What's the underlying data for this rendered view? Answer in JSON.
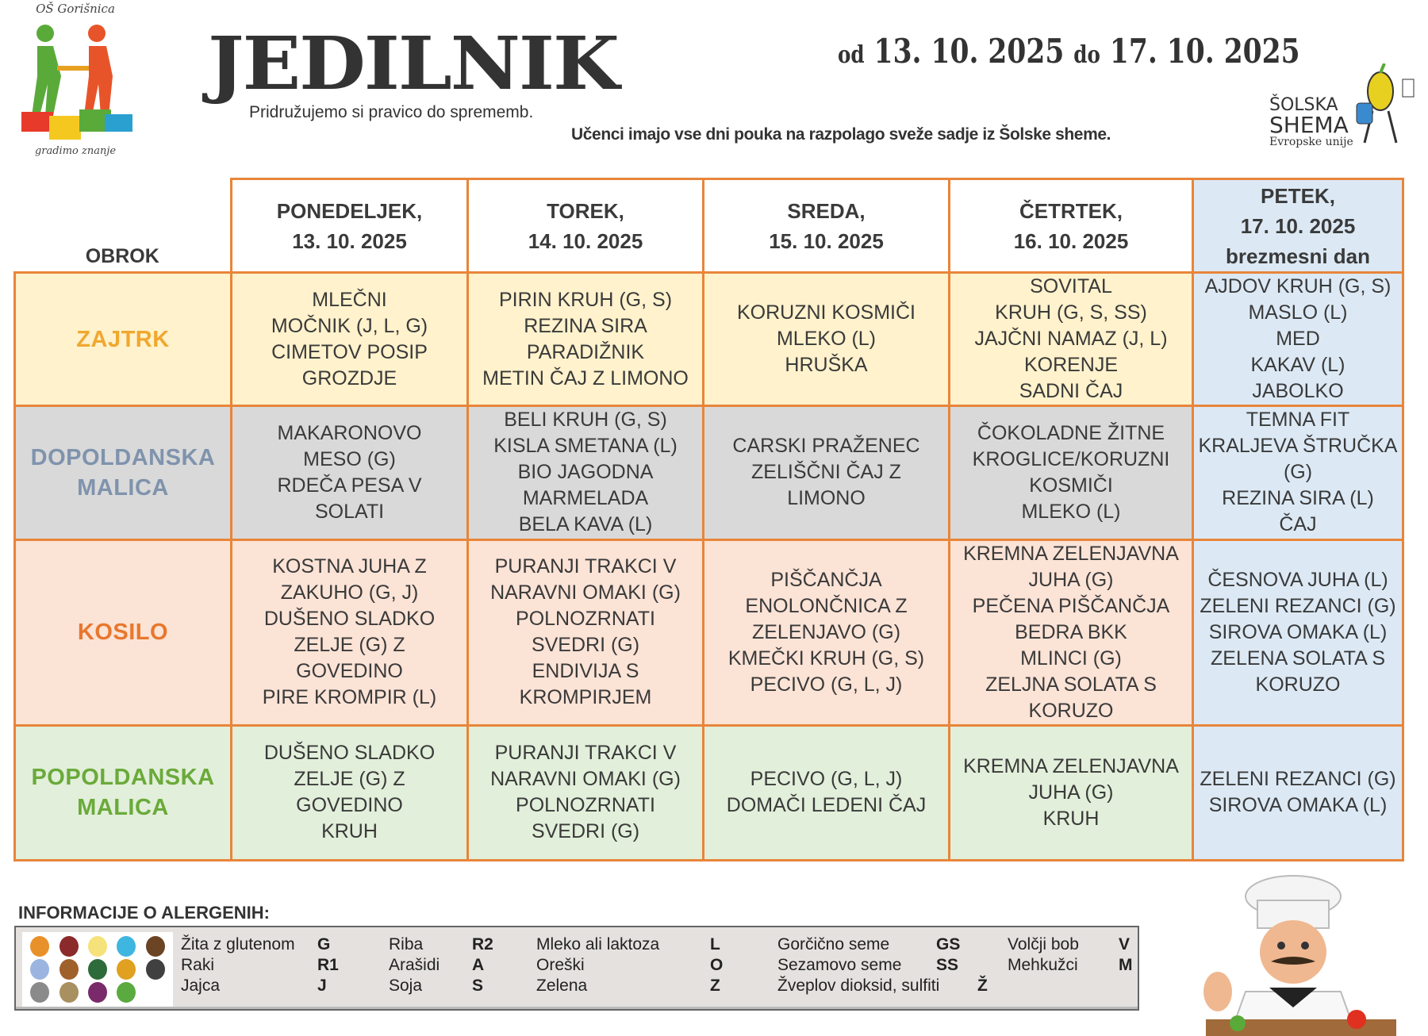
{
  "header": {
    "school": "OŠ Gorišnica",
    "motto": "gradimo znanje",
    "title": "JEDILNIK",
    "subtitle": "Pridružujemo si pravico do sprememb.",
    "date_from_label": "od",
    "date_from": "13. 10. 2025",
    "date_to_label": "do",
    "date_to": "17. 10. 2025",
    "fruit_note": "Učenci imajo vse dni pouka na razpolago sveže sadje iz Šolske sheme.",
    "shema_logo": {
      "line1": "ŠOLSKA",
      "line2": "SHEMA",
      "line3": "Evropske unije"
    }
  },
  "table": {
    "corner": "OBROK",
    "days": [
      {
        "name": "PONEDELJEK,",
        "date": "13. 10. 2025"
      },
      {
        "name": "TOREK,",
        "date": "14. 10. 2025"
      },
      {
        "name": "SREDA,",
        "date": "15. 10. 2025"
      },
      {
        "name": "ČETRTEK,",
        "date": "16. 10. 2025"
      },
      {
        "name": "PETEK,",
        "date": "17. 10. 2025",
        "note": "brezmesni dan"
      }
    ],
    "rows": [
      {
        "meal": [
          "ZAJTRK"
        ],
        "color": "#f0a830",
        "cells": [
          [
            "MLEČNI",
            "MOČNIK (J, L, G)",
            "CIMETOV POSIP",
            "GROZDJE"
          ],
          [
            "PIRIN KRUH (G, S)",
            "REZINA SIRA",
            "PARADIŽNIK",
            "METIN ČAJ Z LIMONO"
          ],
          [
            "KORUZNI KOSMIČI",
            "MLEKO (L)",
            "HRUŠKA"
          ],
          [
            "SOVITAL",
            "KRUH (G, S, SS)",
            "JAJČNI NAMAZ (J, L)",
            "KORENJE",
            "SADNI ČAJ"
          ],
          [
            "AJDOV KRUH (G, S)",
            "MASLO (L)",
            "MED",
            "KAKAV (L)",
            "JABOLKO"
          ]
        ]
      },
      {
        "meal": [
          "DOPOLDANSKA",
          "MALICA"
        ],
        "color": "#7f93ad",
        "cells": [
          [
            "MAKARONOVO",
            "MESO (G)",
            "RDEČA PESA V",
            "SOLATI"
          ],
          [
            "BELI KRUH (G, S)",
            "KISLA SMETANA (L)",
            "BIO JAGODNA",
            "MARMELADA",
            "BELA KAVA (L)"
          ],
          [
            "CARSKI PRAŽENEC",
            "ZELIŠČNI ČAJ Z",
            "LIMONO"
          ],
          [
            "ČOKOLADNE ŽITNE",
            "KROGLICE/KORUZNI",
            "KOSMIČI",
            "MLEKO (L)"
          ],
          [
            "TEMNA FIT",
            "KRALJEVA ŠTRUČKA",
            "(G)",
            "REZINA SIRA (L)",
            "ČAJ"
          ]
        ]
      },
      {
        "meal": [
          "KOSILO"
        ],
        "color": "#e8772e",
        "cells": [
          [
            "KOSTNA JUHA Z",
            "ZAKUHO (G, J)",
            "DUŠENO SLADKO",
            "ZELJE (G) Z",
            "GOVEDINO",
            "PIRE KROMPIR (L)"
          ],
          [
            "PURANJI TRAKCI V",
            "NARAVNI OMAKI (G)",
            "POLNOZRNATI",
            "SVEDRI (G)",
            "ENDIVIJA S",
            "KROMPIRJEM"
          ],
          [
            "PIŠČANČJA",
            "ENOLONČNICA Z",
            "ZELENJAVO (G)",
            "KMEČKI KRUH (G, S)",
            "PECIVO (G, L, J)"
          ],
          [
            "KREMNA ZELENJAVNA",
            "JUHA (G)",
            "PEČENA PIŠČANČJA",
            "BEDRA BKK",
            "MLINCI (G)",
            "ZELJNA SOLATA S",
            "KORUZO"
          ],
          [
            "ČESNOVA JUHA (L)",
            "ZELENI REZANCI (G)",
            "SIROVA OMAKA (L)",
            "ZELENA SOLATA S",
            "KORUZO"
          ]
        ]
      },
      {
        "meal": [
          "POPOLDANSKA",
          "MALICA"
        ],
        "color": "#6aaa3a",
        "cells": [
          [
            "DUŠENO SLADKO",
            "ZELJE (G)  Z",
            "GOVEDINO",
            "KRUH"
          ],
          [
            "PURANJI TRAKCI V",
            "NARAVNI OMAKI (G)",
            "POLNOZRNATI",
            "SVEDRI (G)"
          ],
          [
            "PECIVO (G, L, J)",
            "DOMAČI LEDENI ČAJ"
          ],
          [
            "KREMNA ZELENJAVNA",
            "JUHA (G)",
            "KRUH"
          ],
          [
            "ZELENI REZANCI (G)",
            "SIROVA OMAKA (L)"
          ]
        ]
      }
    ]
  },
  "allergens": {
    "title": "INFORMACIJE O ALERGENIH:",
    "icon_colors": [
      "#e8912a",
      "#8b2a2a",
      "#f5e27a",
      "#3fb6e0",
      "#6b4424",
      "#9bb5e0",
      "#a0602a",
      "#2e6b3a",
      "#e0a020",
      "#404040",
      "#8a8a8a",
      "#a89060",
      "#7a2a6a",
      "#5aaa40"
    ],
    "items": [
      {
        "name": "Žita z glutenom",
        "code": "G"
      },
      {
        "name": "Raki",
        "code": "R1"
      },
      {
        "name": "Jajca",
        "code": "J"
      },
      {
        "name": "Riba",
        "code": "R2"
      },
      {
        "name": "Arašidi",
        "code": "A"
      },
      {
        "name": "Soja",
        "code": "S"
      },
      {
        "name": "Mleko ali laktoza",
        "code": "L"
      },
      {
        "name": "Oreški",
        "code": "O"
      },
      {
        "name": "Zelena",
        "code": "Z"
      },
      {
        "name": "Gorčično seme",
        "code": "GS"
      },
      {
        "name": "Sezamovo seme",
        "code": "SS"
      },
      {
        "name": "Žveplov dioksid, sulfiti",
        "code": "Ž"
      },
      {
        "name": "Volčji bob",
        "code": "V"
      },
      {
        "name": "Mehkužci",
        "code": "M"
      }
    ]
  }
}
